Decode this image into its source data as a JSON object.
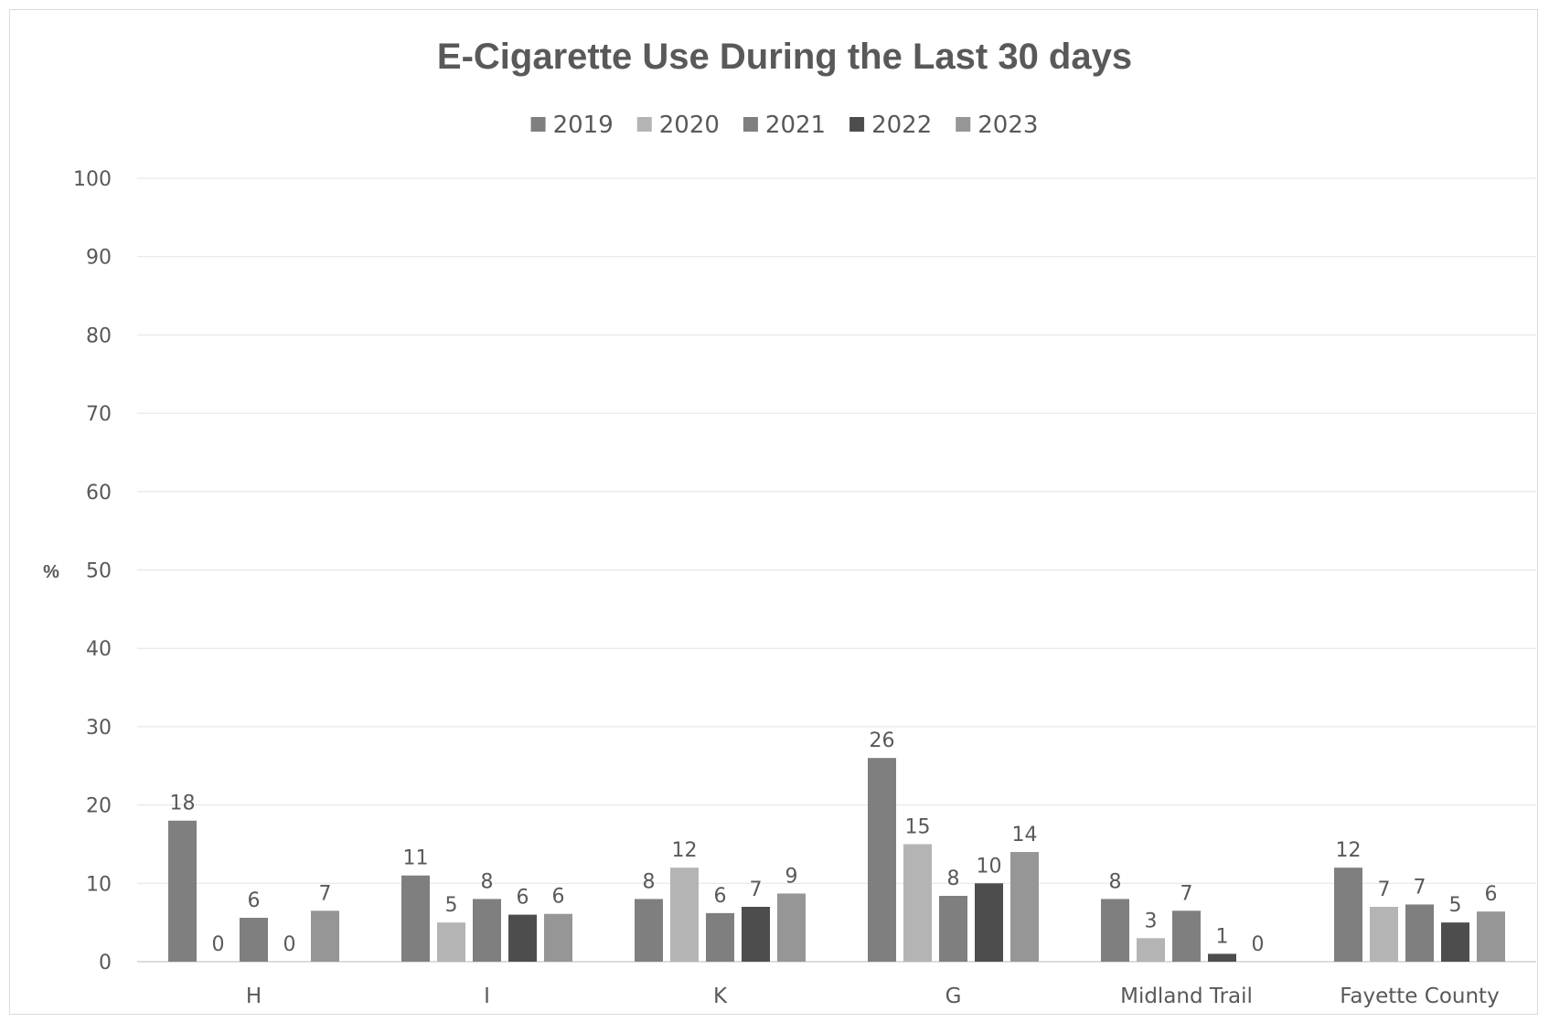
{
  "chart_data": {
    "type": "bar",
    "title": "E-Cigarette Use During the Last 30 days",
    "ylabel": "%",
    "xlabel": "",
    "ylim": [
      0,
      100
    ],
    "yticks": [
      0,
      10,
      20,
      30,
      40,
      50,
      60,
      70,
      80,
      90,
      100
    ],
    "grid": true,
    "legend_position": "top",
    "categories": [
      "H",
      "I",
      "K",
      "G",
      "Midland Trail",
      "Fayette County"
    ],
    "series": [
      {
        "name": "2019",
        "color": "#7f7f7f",
        "values": [
          18,
          11,
          8,
          26,
          8,
          12
        ],
        "labels": [
          "18",
          "11",
          "8",
          "26",
          "8",
          "12"
        ]
      },
      {
        "name": "2020",
        "color": "#b4b4b4",
        "values": [
          0,
          5,
          12,
          15,
          3,
          7
        ],
        "labels": [
          "0",
          "5",
          "12",
          "15",
          "3",
          "7"
        ]
      },
      {
        "name": "2021",
        "color": "#7f7f7f",
        "values": [
          5.6,
          8,
          6.2,
          8.4,
          6.5,
          7.3
        ],
        "labels": [
          "6",
          "8",
          "6",
          "8",
          "7",
          "7"
        ]
      },
      {
        "name": "2022",
        "color": "#4d4d4d",
        "values": [
          0,
          6,
          7,
          10,
          1,
          5
        ],
        "labels": [
          "0",
          "6",
          "7",
          "10",
          "1",
          "5"
        ]
      },
      {
        "name": "2023",
        "color": "#969696",
        "values": [
          6.5,
          6.1,
          8.7,
          14,
          0,
          6.4
        ],
        "labels": [
          "7",
          "6",
          "9",
          "14",
          "0",
          "6"
        ]
      }
    ]
  }
}
